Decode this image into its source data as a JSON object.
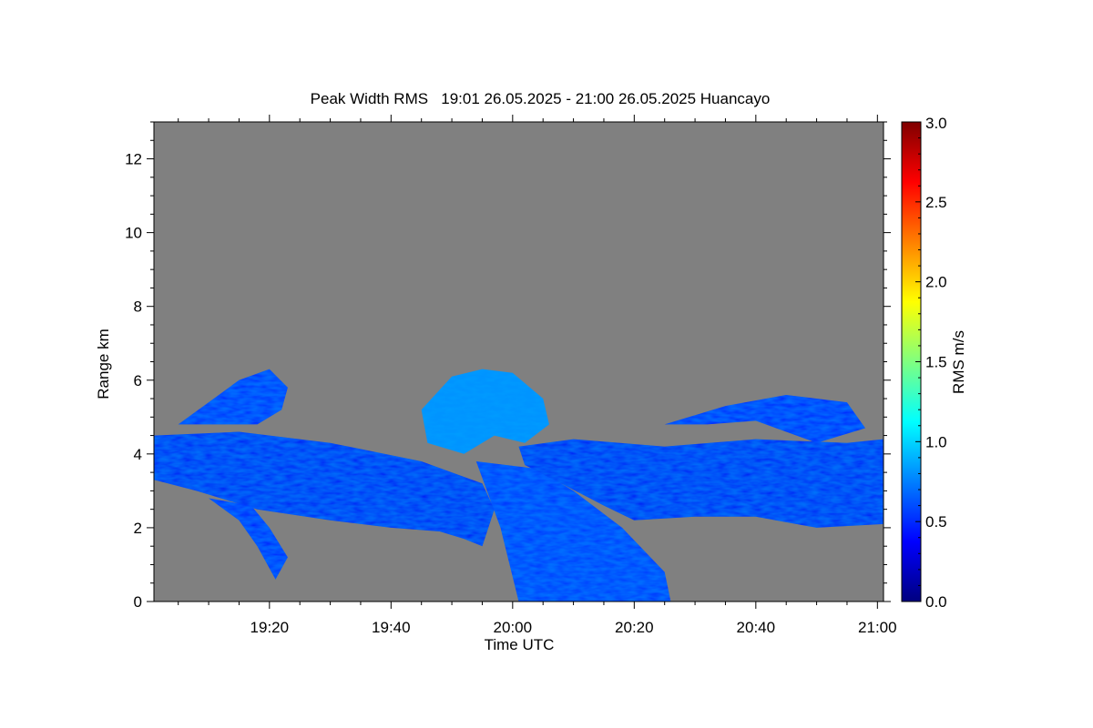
{
  "chart_data": {
    "type": "heatmap",
    "title": "Peak Width RMS   19:01 26.05.2025 - 21:00 26.05.2025 Huancayo",
    "xlabel": "Time UTC",
    "ylabel": "Range km",
    "xlim": [
      "19:01",
      "21:01"
    ],
    "ylim": [
      0,
      13
    ],
    "x_ticks": [
      "19:20",
      "19:40",
      "20:00",
      "20:20",
      "20:40",
      "21:00"
    ],
    "x_tick_minutes": [
      1160,
      1180,
      1200,
      1220,
      1240,
      1260
    ],
    "y_ticks": [
      0,
      2,
      4,
      6,
      8,
      10,
      12
    ],
    "background_color": "#808080",
    "colorbar": {
      "label": "RMS m/s",
      "range": [
        0.0,
        3.0
      ],
      "ticks": [
        "0.0",
        "0.5",
        "1.0",
        "1.5",
        "2.0",
        "2.5",
        "3.0"
      ],
      "tick_values": [
        0.0,
        0.5,
        1.0,
        1.5,
        2.0,
        2.5,
        3.0
      ],
      "colormap": "jet"
    },
    "regions": [
      {
        "name": "lower-cloud-band",
        "rms": 0.35,
        "outline": [
          [
            1141,
            3.3
          ],
          [
            1148,
            3.0
          ],
          [
            1158,
            2.5
          ],
          [
            1170,
            2.2
          ],
          [
            1180,
            2.0
          ],
          [
            1188,
            1.9
          ],
          [
            1192,
            1.7
          ],
          [
            1195,
            1.5
          ],
          [
            1197,
            2.5
          ],
          [
            1195,
            3.2
          ],
          [
            1185,
            3.8
          ],
          [
            1170,
            4.3
          ],
          [
            1155,
            4.6
          ],
          [
            1141,
            4.5
          ]
        ]
      },
      {
        "name": "upper-left-plume",
        "rms": 0.45,
        "outline": [
          [
            1145,
            4.8
          ],
          [
            1150,
            5.4
          ],
          [
            1155,
            6.0
          ],
          [
            1160,
            6.3
          ],
          [
            1163,
            5.8
          ],
          [
            1162,
            5.2
          ],
          [
            1158,
            4.8
          ]
        ]
      },
      {
        "name": "left-fallstreak",
        "rms": 0.4,
        "outline": [
          [
            1150,
            2.8
          ],
          [
            1155,
            2.2
          ],
          [
            1158,
            1.5
          ],
          [
            1161,
            0.6
          ],
          [
            1163,
            1.2
          ],
          [
            1160,
            2.0
          ],
          [
            1157,
            2.6
          ]
        ]
      },
      {
        "name": "central-precipitation-shaft",
        "rms": 0.5,
        "outline": [
          [
            1194,
            3.8
          ],
          [
            1198,
            2.0
          ],
          [
            1201,
            0.0
          ],
          [
            1226,
            0.0
          ],
          [
            1225,
            0.8
          ],
          [
            1218,
            2.0
          ],
          [
            1210,
            3.0
          ],
          [
            1204,
            3.6
          ]
        ]
      },
      {
        "name": "central-convective-tower",
        "rms": 0.8,
        "outline": [
          [
            1185,
            5.2
          ],
          [
            1190,
            6.1
          ],
          [
            1195,
            6.3
          ],
          [
            1200,
            6.2
          ],
          [
            1205,
            5.5
          ],
          [
            1206,
            4.8
          ],
          [
            1202,
            4.3
          ],
          [
            1197,
            4.5
          ],
          [
            1192,
            4.0
          ],
          [
            1186,
            4.3
          ]
        ]
      },
      {
        "name": "right-cloud-band",
        "rms": 0.35,
        "outline": [
          [
            1201,
            4.2
          ],
          [
            1210,
            4.4
          ],
          [
            1225,
            4.2
          ],
          [
            1240,
            4.4
          ],
          [
            1255,
            4.3
          ],
          [
            1261,
            4.4
          ],
          [
            1261,
            2.1
          ],
          [
            1250,
            2.0
          ],
          [
            1240,
            2.3
          ],
          [
            1230,
            2.3
          ],
          [
            1220,
            2.2
          ],
          [
            1215,
            2.6
          ],
          [
            1208,
            3.2
          ],
          [
            1202,
            3.7
          ]
        ]
      },
      {
        "name": "upper-right-layer",
        "rms": 0.4,
        "outline": [
          [
            1225,
            4.8
          ],
          [
            1235,
            5.3
          ],
          [
            1245,
            5.6
          ],
          [
            1255,
            5.4
          ],
          [
            1258,
            4.7
          ],
          [
            1250,
            4.3
          ],
          [
            1240,
            4.9
          ],
          [
            1232,
            4.8
          ]
        ]
      }
    ]
  }
}
